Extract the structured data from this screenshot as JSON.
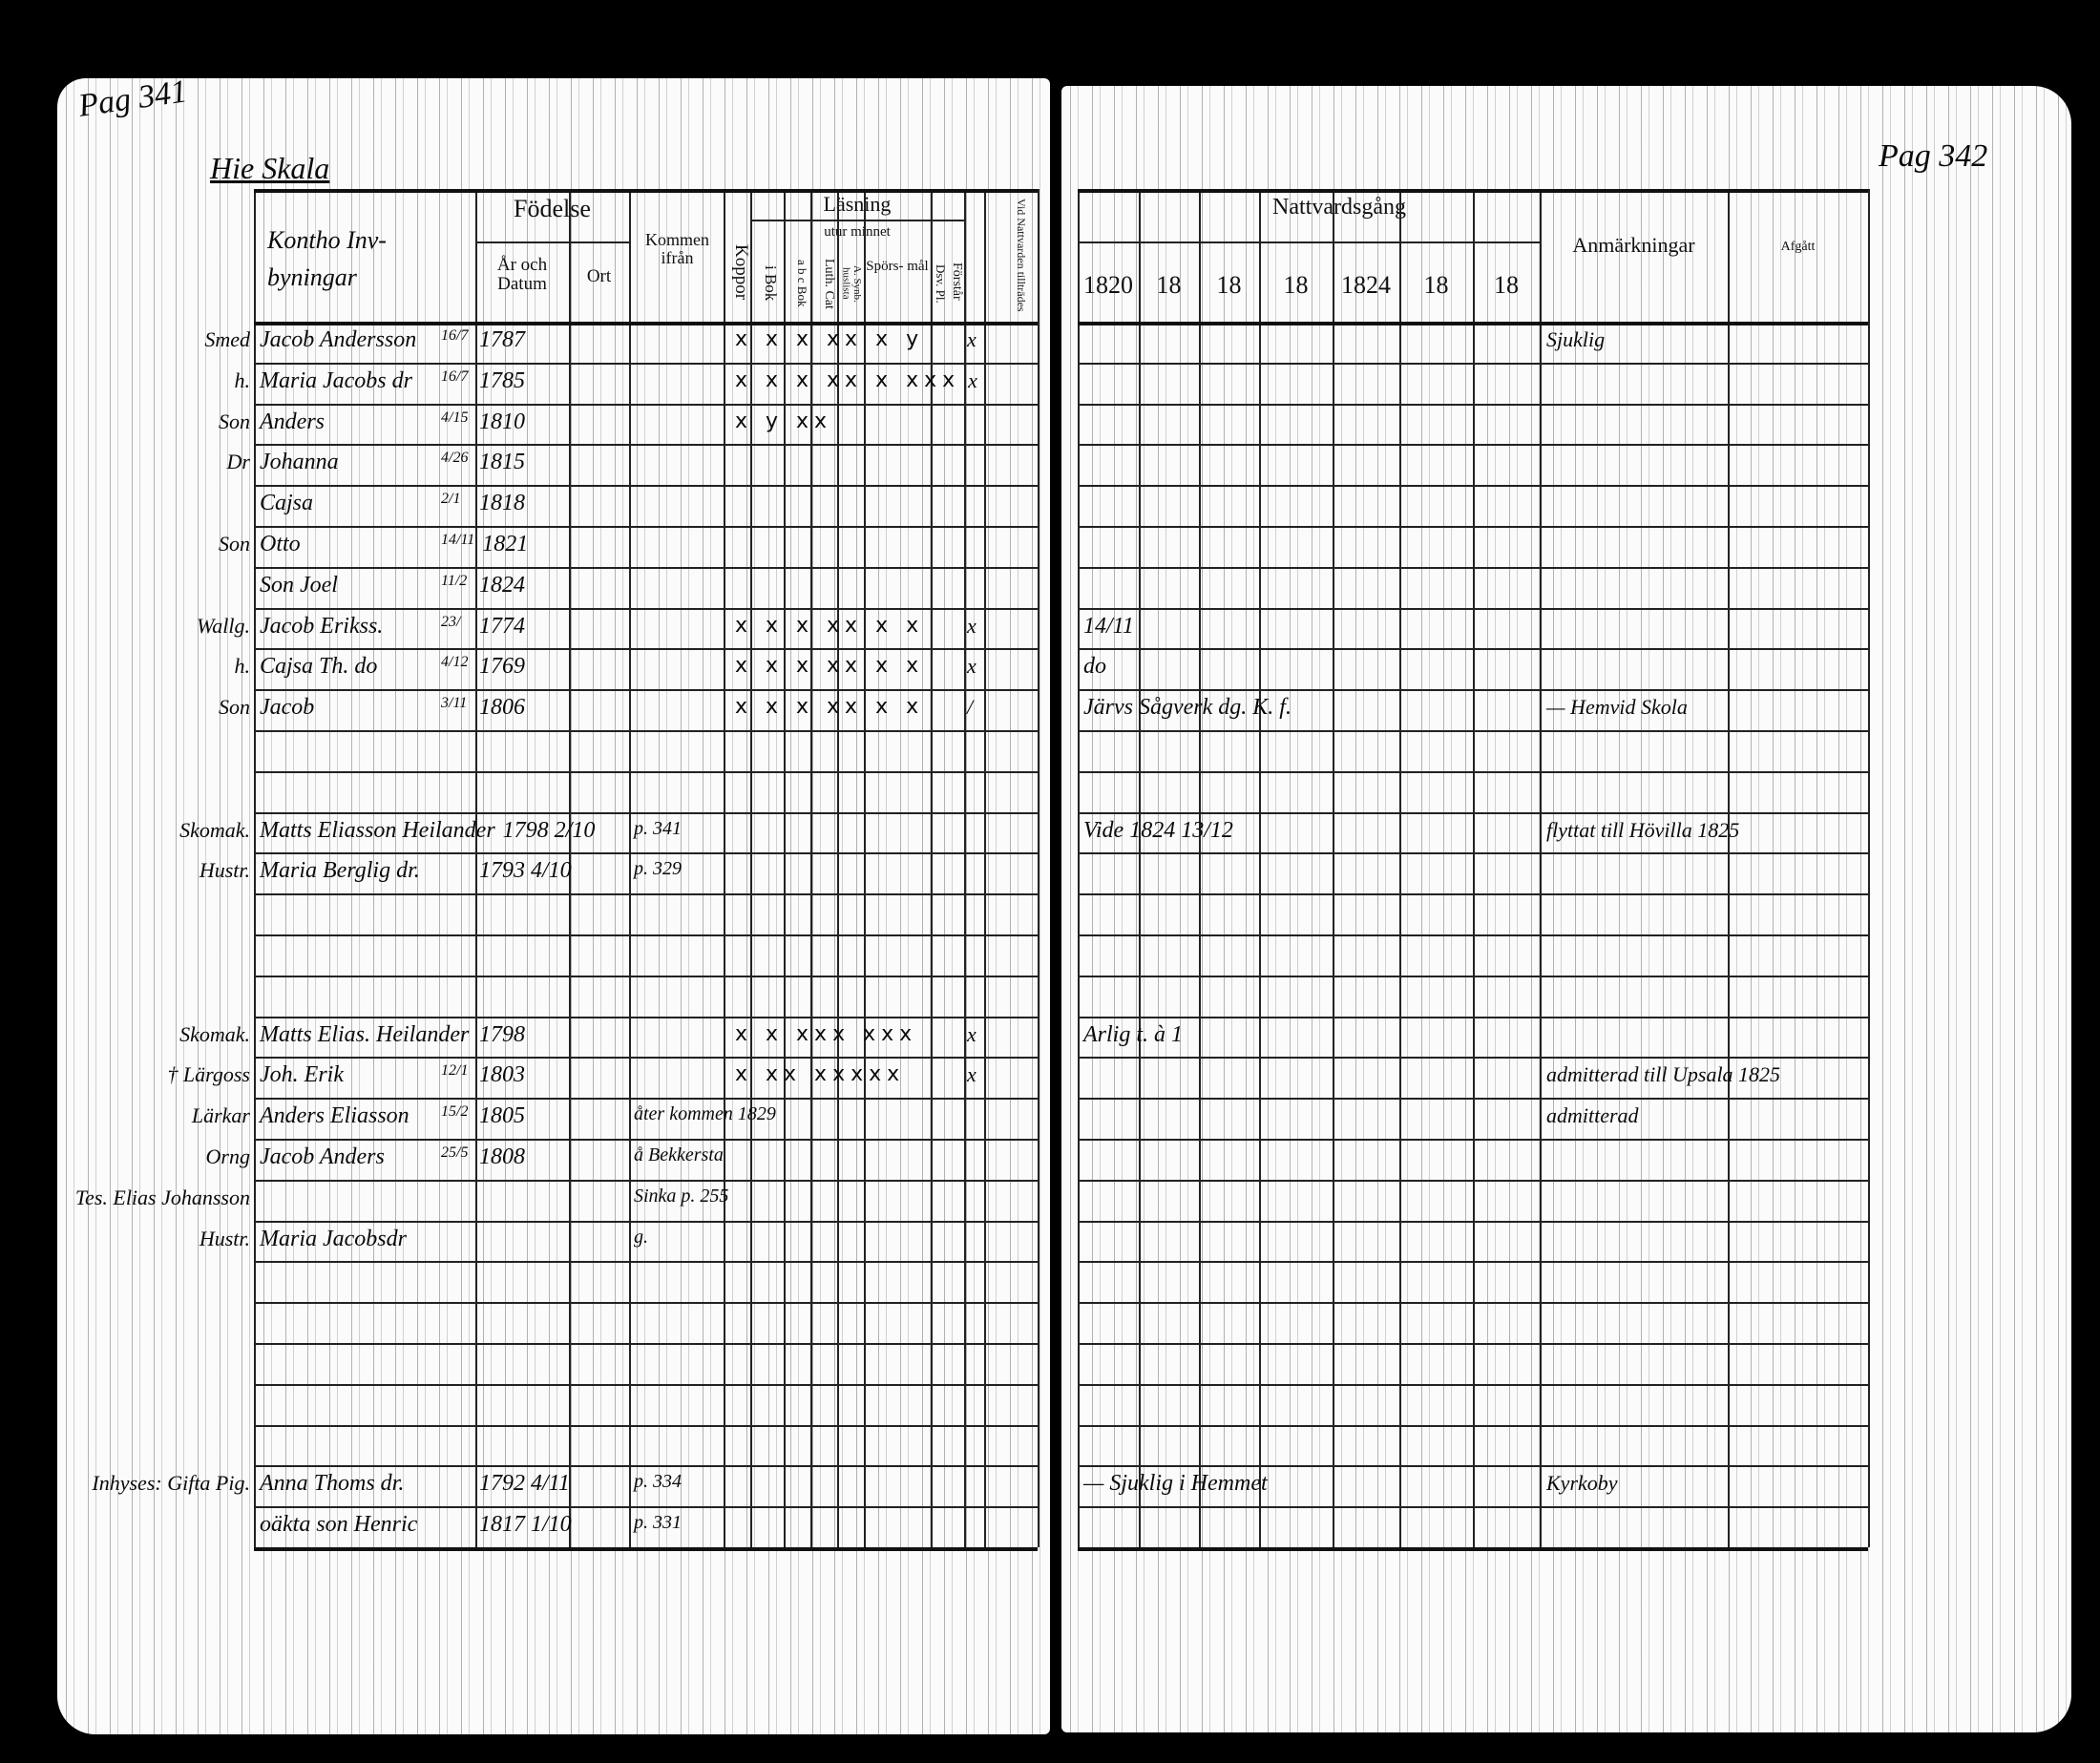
{
  "left_page": {
    "page_number": "Pag 341",
    "village": "Hie Skala",
    "name_column_heading": "Kontho Inv- byningar",
    "headers": {
      "fodelse": "Födelse",
      "ar_och_datum": "År och Datum",
      "ort": "Ort",
      "kommen_ifran": "Kommen ifrån",
      "koppor": "Koppor",
      "lasning": "Läsning",
      "utur_minnet": "utur minnet",
      "i_bok": "i Bok",
      "abc_bok": "a b c Bok",
      "luth_cat": "Luth. Cat",
      "a_synb": "A. Synb. huslista",
      "sporsmal": "Spörs- mål",
      "dsv_pl": "Dsv. Pl.",
      "forstar": "Förstår",
      "vid_nattvarden": "Vid Nattvarden tillträdes"
    }
  },
  "right_page": {
    "page_number": "Pag 342",
    "headers": {
      "nattvardsgang": "Nattvardsgång",
      "years": [
        "1820",
        "18",
        "18",
        "18",
        "1824",
        "18",
        "18"
      ],
      "anmarkningar": "Anmärkningar",
      "afgatt": "Afgått"
    }
  },
  "entries": [
    {
      "note": "Smed",
      "name": "Jacob Andersson",
      "day": "16/7",
      "year": "1787",
      "came_from": "",
      "marks": "x x x xx x y",
      "forstar": "x",
      "nattvard": "",
      "remarks": "Sjuklig"
    },
    {
      "note": "h.",
      "name": "Maria Jacobs dr",
      "day": "16/7",
      "year": "1785",
      "came_from": "",
      "marks": "x x x xx x xxx",
      "forstar": "x",
      "nattvard": "",
      "remarks": ""
    },
    {
      "note": "Son",
      "name": "Anders",
      "day": "4/15",
      "year": "1810",
      "came_from": "",
      "marks": "x y xx",
      "forstar": "",
      "nattvard": "",
      "remarks": ""
    },
    {
      "note": "Dr",
      "name": "Johanna",
      "day": "4/26",
      "year": "1815",
      "came_from": "",
      "marks": "",
      "forstar": "",
      "nattvard": "",
      "remarks": ""
    },
    {
      "note": "",
      "name": "Cajsa",
      "day": "2/1",
      "year": "1818",
      "came_from": "",
      "marks": "",
      "forstar": "",
      "nattvard": "",
      "remarks": ""
    },
    {
      "note": "Son",
      "name": "Otto",
      "day": "14/11",
      "year": "1821",
      "came_from": "",
      "marks": "",
      "forstar": "",
      "nattvard": "",
      "remarks": ""
    },
    {
      "note": "",
      "name": "Son Joel",
      "day": "11/2",
      "year": "1824",
      "came_from": "",
      "marks": "",
      "forstar": "",
      "nattvard": "",
      "remarks": ""
    },
    {
      "note": "Wallg.",
      "name": "Jacob Erikss.",
      "day": "23/",
      "year": "1774",
      "came_from": "",
      "marks": "x x x xx x x",
      "forstar": "x",
      "nattvard": "14/11",
      "remarks": ""
    },
    {
      "note": "h.",
      "name": "Cajsa Th. do",
      "day": "4/12",
      "year": "1769",
      "came_from": "",
      "marks": "x x x xx x x",
      "forstar": "x",
      "nattvard": "do",
      "remarks": ""
    },
    {
      "note": "Son",
      "name": "Jacob",
      "day": "3/11",
      "year": "1806",
      "came_from": "",
      "marks": "x x x xx x x",
      "forstar": "/",
      "nattvard": "Järvs Sågverk dg. K. f.",
      "remarks": "— Hemvid Skola"
    },
    {
      "note": "Skomak.",
      "name": "Matts Eliasson Heilander",
      "day": "",
      "year": "1798 2/10",
      "came_from": "p. 341",
      "marks": "",
      "forstar": "",
      "nattvard": "Vide 1824 13/12",
      "remarks": "flyttat till Hövilla 1825"
    },
    {
      "note": "Hustr.",
      "name": "Maria Berglig dr.",
      "day": "",
      "year": "1793 4/10",
      "came_from": "p. 329",
      "marks": "",
      "forstar": "",
      "nattvard": "",
      "remarks": ""
    },
    {
      "note": "Skomak.",
      "name": "Matts Elias. Heilander",
      "day": "",
      "year": "1798",
      "came_from": "",
      "marks": "x x xxx xxx",
      "forstar": "x",
      "nattvard": "Arlig t. à 1",
      "remarks": ""
    },
    {
      "note": "† Lärgoss",
      "name": "Joh. Erik",
      "day": "12/1",
      "year": "1803",
      "came_from": "",
      "marks": "x xx xxxxx",
      "forstar": "x",
      "nattvard": "",
      "remarks": "admitterad till Upsala 1825"
    },
    {
      "note": "Lärkar",
      "name": "Anders Eliasson",
      "day": "15/2",
      "year": "1805",
      "came_from": "åter kommen 1829",
      "marks": "",
      "forstar": "",
      "nattvard": "",
      "remarks": "admitterad"
    },
    {
      "note": "Orng",
      "name": "Jacob Anders",
      "day": "25/5",
      "year": "1808",
      "came_from": "å Bekkersta",
      "marks": "",
      "forstar": "",
      "nattvard": "",
      "remarks": ""
    },
    {
      "note": "Tes. Elias Johansson",
      "name": "",
      "day": "",
      "year": "",
      "came_from": "Sinka p. 255",
      "marks": "",
      "forstar": "",
      "nattvard": "",
      "remarks": ""
    },
    {
      "note": "Hustr.",
      "name": "Maria Jacobsdr",
      "day": "",
      "year": "",
      "came_from": "g.",
      "marks": "",
      "forstar": "",
      "nattvard": "",
      "remarks": ""
    },
    {
      "note": "Inhyses: Gifta Pig.",
      "name": "Anna Thoms dr.",
      "day": "",
      "year": "1792 4/11",
      "came_from": "p. 334",
      "marks": "",
      "forstar": "",
      "nattvard": "— Sjuklig i Hemmet",
      "remarks": "Kyrkoby"
    },
    {
      "note": "",
      "name": "oäkta son Henric",
      "day": "",
      "year": "1817 1/10",
      "came_from": "p. 331",
      "marks": "",
      "forstar": "",
      "nattvard": "",
      "remarks": ""
    }
  ]
}
